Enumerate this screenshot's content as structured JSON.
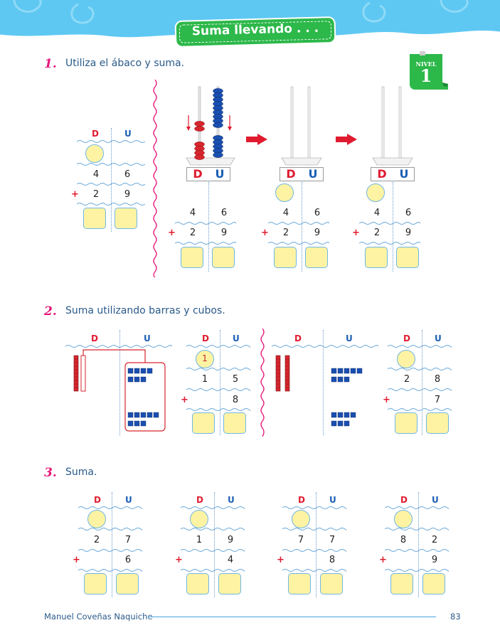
{
  "header": {
    "title": "Suma llevando . . .",
    "band_color": "#5ec8f2",
    "banner_color": "#2db84a"
  },
  "level_badge": {
    "word": "NIVEL",
    "number": "1",
    "color": "#2db84a"
  },
  "colors": {
    "decenas": "#e01b2f",
    "unidades": "#1a5fb4",
    "answer_fill": "#fdf3a3",
    "answer_border": "#6fb6e6"
  },
  "q1": {
    "number": "1.",
    "text": "Utiliza el ábaco y suma.",
    "table": {
      "d": "D",
      "u": "U",
      "top": [
        "4",
        "6"
      ],
      "bottom": [
        "2",
        "9"
      ],
      "plus": "+"
    },
    "abaci": [
      {
        "d": "D",
        "u": "U",
        "top": [
          "4",
          "6"
        ],
        "bottom": [
          "2",
          "9"
        ],
        "plus": "+"
      },
      {
        "d": "D",
        "u": "U",
        "top": [
          "4",
          "6"
        ],
        "bottom": [
          "2",
          "9"
        ],
        "plus": "+"
      },
      {
        "d": "D",
        "u": "U",
        "top": [
          "4",
          "6"
        ],
        "bottom": [
          "2",
          "9"
        ],
        "plus": "+"
      }
    ]
  },
  "q2": {
    "number": "2.",
    "text": "Suma utilizando barras y cubos.",
    "a": {
      "d": "D",
      "u": "U",
      "carry": "1",
      "top": [
        "1",
        "5"
      ],
      "bottom": [
        "",
        "8"
      ],
      "plus": "+"
    },
    "b": {
      "d": "D",
      "u": "U",
      "top": [
        "2",
        "8"
      ],
      "bottom": [
        "",
        "7"
      ],
      "plus": "+"
    },
    "panel_a": {
      "d": "D",
      "u": "U"
    },
    "panel_b": {
      "d": "D",
      "u": "U"
    }
  },
  "q3": {
    "number": "3.",
    "text": "Suma.",
    "problems": [
      {
        "d": "D",
        "u": "U",
        "top": [
          "2",
          "7"
        ],
        "bottom": [
          "",
          "6"
        ],
        "plus": "+"
      },
      {
        "d": "D",
        "u": "U",
        "top": [
          "1",
          "9"
        ],
        "bottom": [
          "",
          "4"
        ],
        "plus": "+"
      },
      {
        "d": "D",
        "u": "U",
        "top": [
          "7",
          "7"
        ],
        "bottom": [
          "",
          "8"
        ],
        "plus": "+"
      },
      {
        "d": "D",
        "u": "U",
        "top": [
          "8",
          "2"
        ],
        "bottom": [
          "",
          "9"
        ],
        "plus": "+"
      }
    ]
  },
  "footer": {
    "author": "Manuel Coveñas Naquiche",
    "page": "83"
  }
}
